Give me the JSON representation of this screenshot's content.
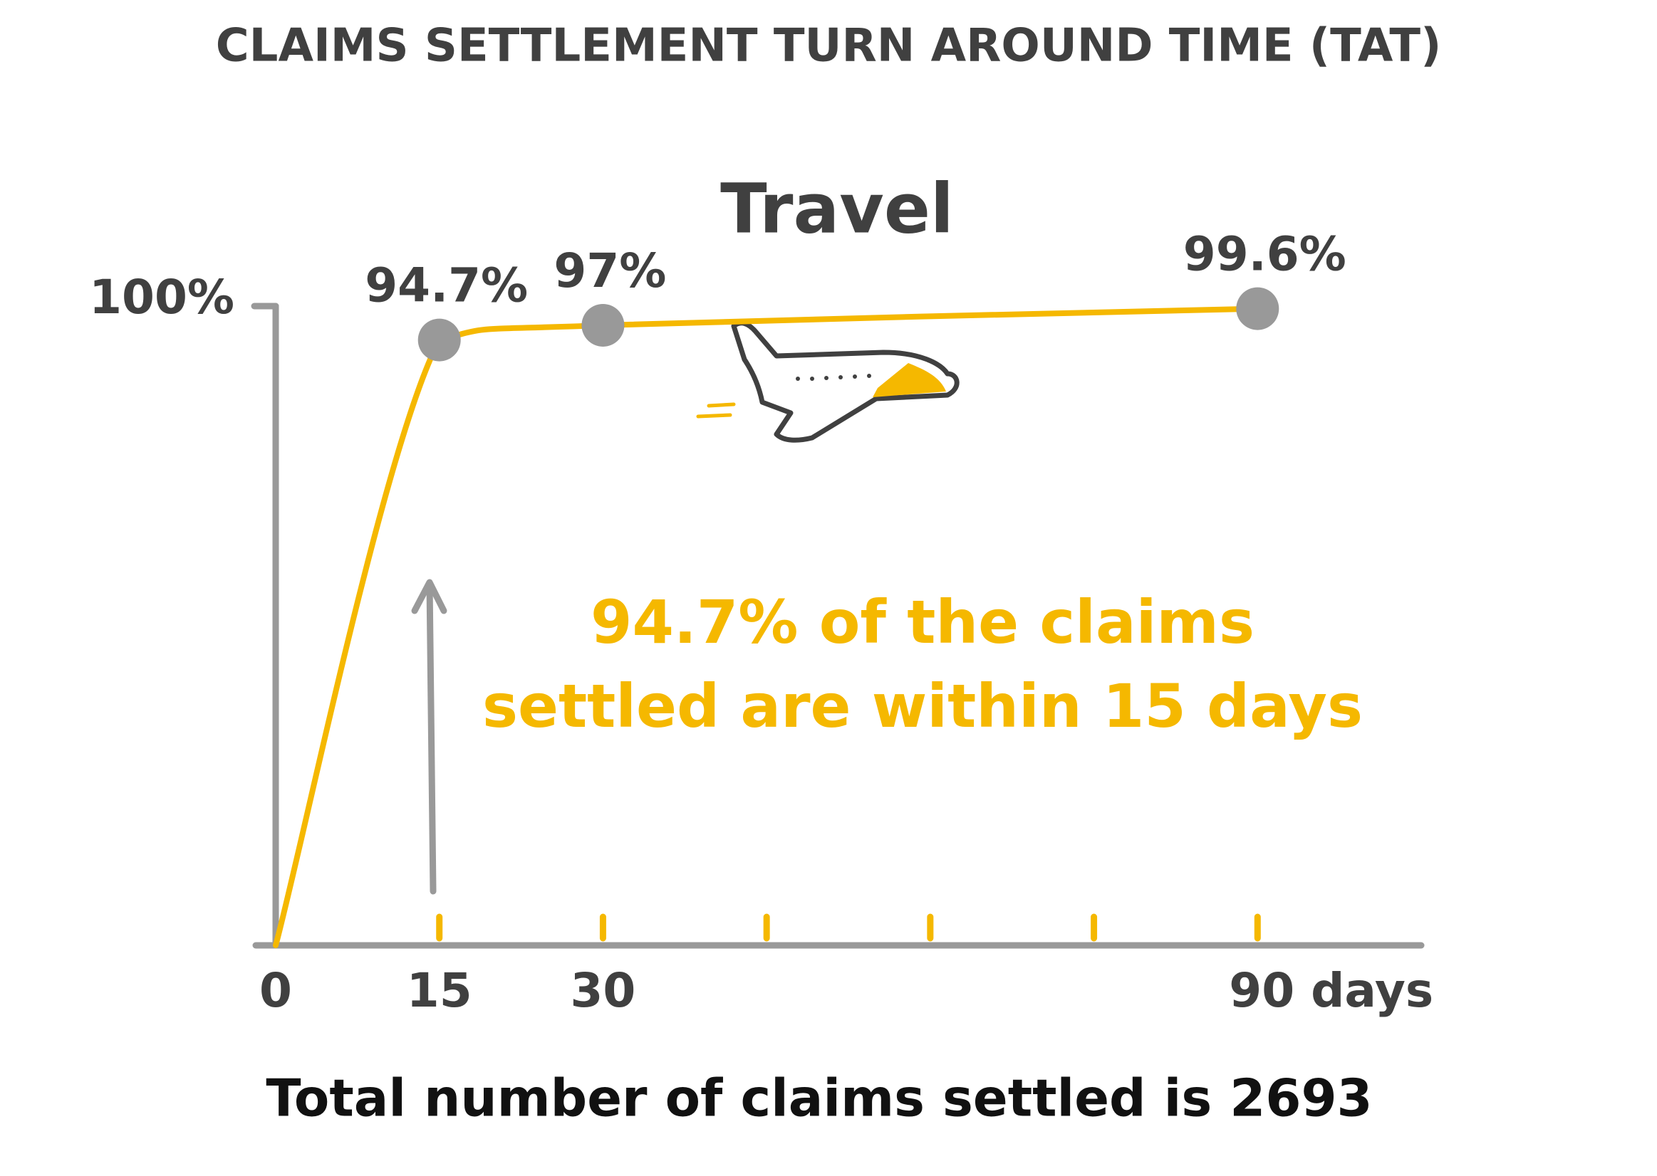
{
  "chart_data": {
    "type": "line",
    "title": "CLAIMS SETTLEMENT TURN AROUND TIME (TAT)",
    "subtitle": "Travel",
    "x": [
      0,
      15,
      30,
      90
    ],
    "series": [
      {
        "color": "#f5b800",
        "values": [
          0,
          94.7,
          97,
          99.6
        ],
        "value_labels": [
          null,
          "94.7%",
          "97%",
          "99.6%"
        ]
      }
    ],
    "xlim": [
      0,
      105
    ],
    "xticks": [
      0,
      15,
      30,
      {
        "value": 45,
        "label": null
      },
      {
        "value": 60,
        "label": null
      },
      {
        "value": 75,
        "label": null
      },
      {
        "value": 90,
        "label": "90 days"
      }
    ],
    "ylim": [
      0,
      100
    ],
    "yticks": [
      {
        "value": 100,
        "label": "100%"
      }
    ],
    "annotation": [
      "94.7% of the claims",
      "settled are within 15 days"
    ],
    "footnote": "Total number of claims settled is 2693",
    "axis_color": "#999999",
    "marker_color": "#999999"
  }
}
